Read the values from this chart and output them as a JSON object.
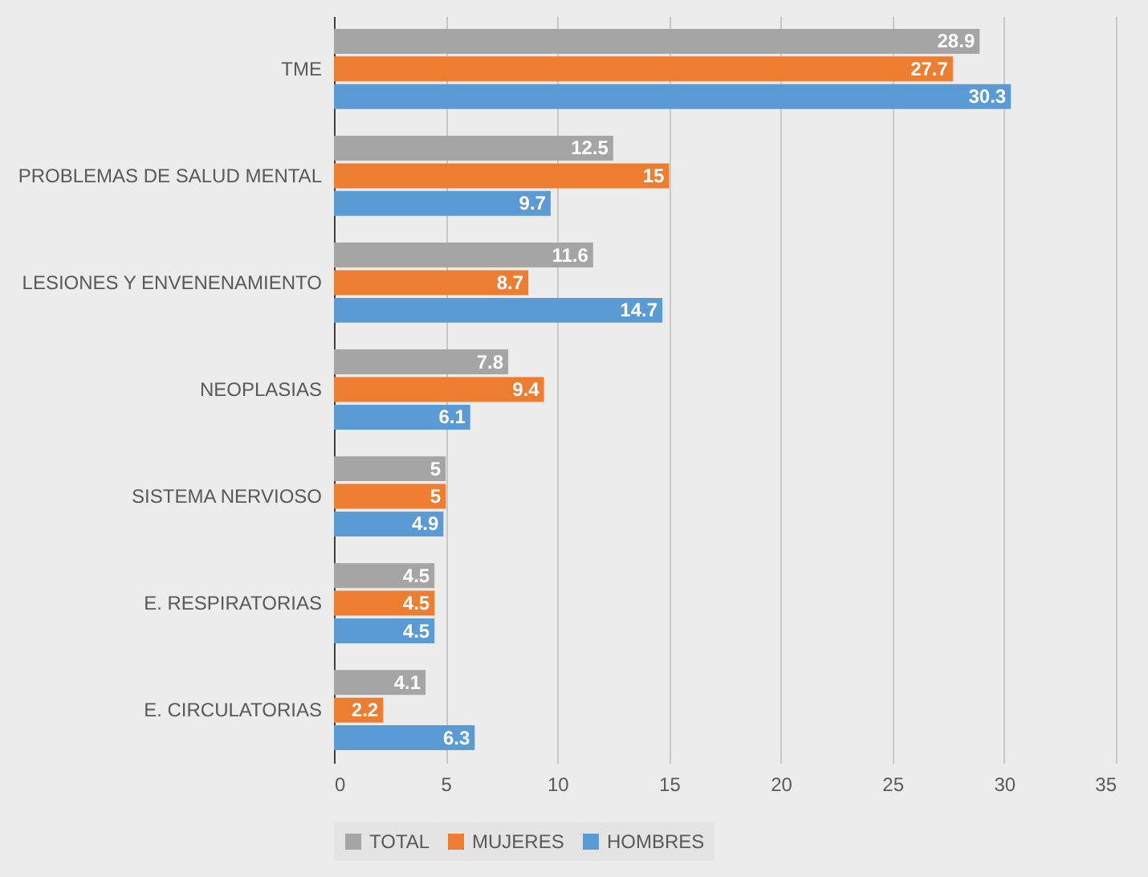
{
  "chart_data": {
    "type": "bar",
    "orientation": "horizontal",
    "categories": [
      "TME",
      "PROBLEMAS DE SALUD MENTAL",
      "LESIONES Y ENVENENAMIENTO",
      "NEOPLASIAS",
      "SISTEMA NERVIOSO",
      "E. RESPIRATORIAS",
      "E. CIRCULATORIAS"
    ],
    "series": [
      {
        "name": "TOTAL",
        "color": "#a5a5a5",
        "values": [
          28.9,
          12.5,
          11.6,
          7.8,
          5,
          4.5,
          4.1
        ]
      },
      {
        "name": "MUJERES",
        "color": "#ed7d31",
        "values": [
          27.7,
          15,
          8.7,
          9.4,
          5,
          4.5,
          2.2
        ]
      },
      {
        "name": "HOMBRES",
        "color": "#5b9bd5",
        "values": [
          30.3,
          9.7,
          14.7,
          6.1,
          4.9,
          4.5,
          6.3
        ]
      }
    ],
    "xlim": [
      0,
      35
    ],
    "xticks": [
      0,
      5,
      10,
      15,
      20,
      25,
      30,
      35
    ],
    "grid": "x",
    "legend": "bottom",
    "data_labels": true
  }
}
